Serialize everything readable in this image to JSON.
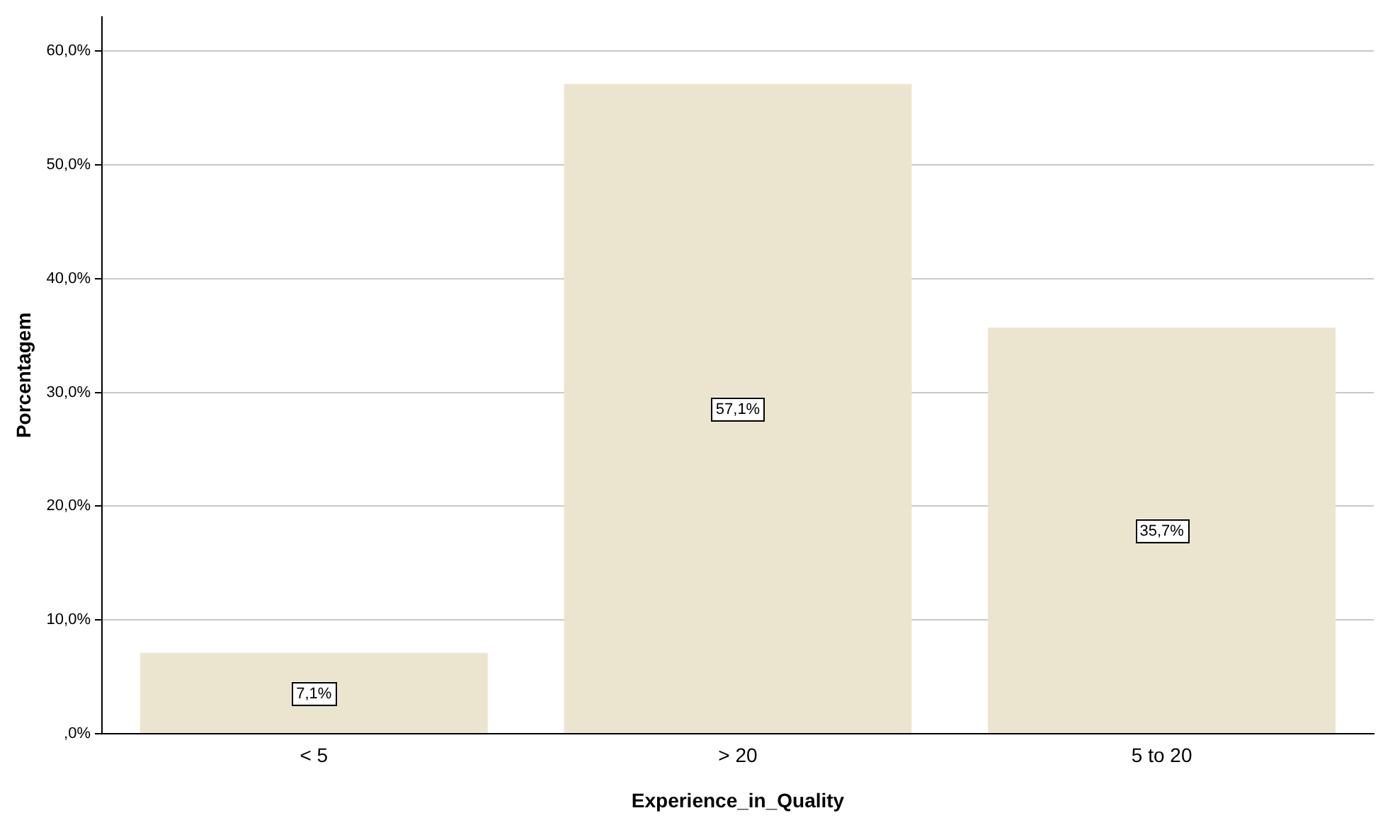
{
  "chart_data": {
    "type": "bar",
    "xlabel": "Experience_in_Quality",
    "ylabel": "Porcentagem",
    "categories": [
      "< 5",
      "> 20",
      "5 to 20"
    ],
    "values": [
      7.1,
      57.1,
      35.7
    ],
    "value_labels": [
      "7,1%",
      "57,1%",
      "35,7%"
    ],
    "color": "#ebe4cf",
    "ylim": [
      0,
      63
    ],
    "yticks": [
      {
        "value": 0,
        "label": ",0%"
      },
      {
        "value": 10,
        "label": "10,0%"
      },
      {
        "value": 20,
        "label": "20,0%"
      },
      {
        "value": 30,
        "label": "30,0%"
      },
      {
        "value": 40,
        "label": "40,0%"
      },
      {
        "value": 50,
        "label": "50,0%"
      },
      {
        "value": 60,
        "label": "60,0%"
      }
    ],
    "grid": "y",
    "legend": false
  }
}
